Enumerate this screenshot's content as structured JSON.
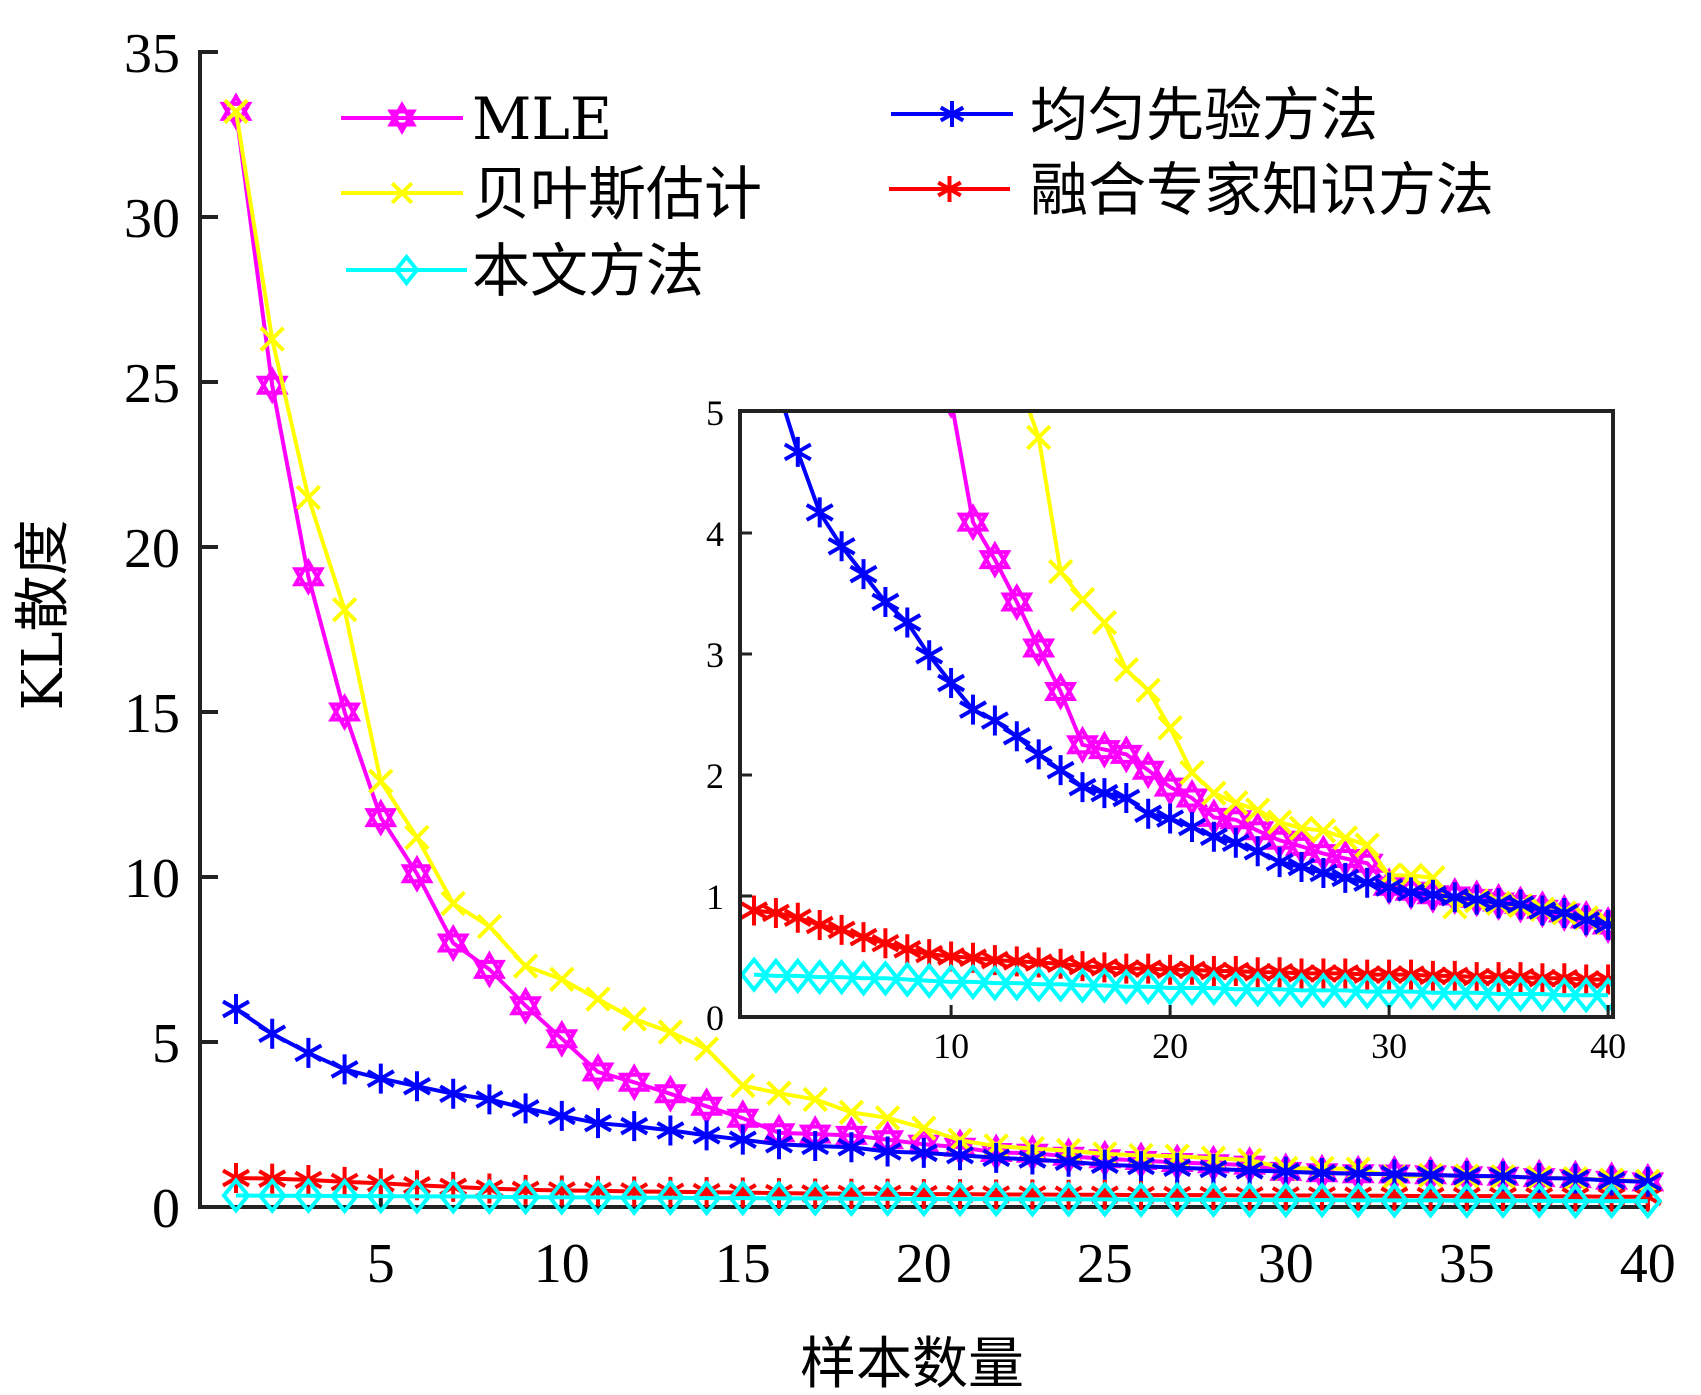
{
  "chart_data": [
    {
      "type": "line",
      "name": "main",
      "title": "",
      "xlabel": "样本数量",
      "ylabel": "KL散度",
      "xlim": [
        0,
        40
      ],
      "ylim": [
        0,
        35
      ],
      "xticks": [
        5,
        10,
        15,
        20,
        25,
        30,
        35,
        40
      ],
      "yticks": [
        0,
        5,
        10,
        15,
        20,
        25,
        30,
        35
      ],
      "grid": false,
      "legend_position": "top",
      "x": [
        1,
        2,
        3,
        4,
        5,
        6,
        7,
        8,
        9,
        10,
        11,
        12,
        13,
        14,
        15,
        16,
        17,
        18,
        19,
        20,
        21,
        22,
        23,
        24,
        25,
        26,
        27,
        28,
        29,
        30,
        31,
        32,
        33,
        34,
        35,
        36,
        37,
        38,
        39,
        40
      ],
      "series": [
        {
          "name": "MLE",
          "color": "#ff00ff",
          "marker": "hexagram",
          "values": [
            33.2,
            24.9,
            19.1,
            15.0,
            11.8,
            10.1,
            8.0,
            7.2,
            6.1,
            5.1,
            4.09,
            3.78,
            3.43,
            3.05,
            2.69,
            2.25,
            2.21,
            2.17,
            2.04,
            1.9,
            1.81,
            1.65,
            1.63,
            1.54,
            1.46,
            1.41,
            1.35,
            1.31,
            1.27,
            1.08,
            1.04,
            1.01,
            1.0,
            0.98,
            0.95,
            0.93,
            0.89,
            0.86,
            0.81,
            0.76
          ]
        },
        {
          "name": "贝叶斯估计",
          "color": "#ffff00",
          "marker": "x",
          "values": [
            33.2,
            26.3,
            21.5,
            18.1,
            12.9,
            11.2,
            9.2,
            8.5,
            7.3,
            6.9,
            6.3,
            5.7,
            5.3,
            4.79,
            3.68,
            3.45,
            3.26,
            2.87,
            2.7,
            2.39,
            2.02,
            1.85,
            1.77,
            1.71,
            1.61,
            1.56,
            1.54,
            1.48,
            1.42,
            1.17,
            1.17,
            1.15,
            0.91,
            0.96,
            0.94,
            0.92,
            0.89,
            0.86,
            0.82,
            0.78
          ]
        },
        {
          "name": "本文方法",
          "color": "#00ffff",
          "marker": "diamond",
          "values": [
            0.35,
            0.34,
            0.34,
            0.33,
            0.33,
            0.32,
            0.32,
            0.31,
            0.3,
            0.29,
            0.29,
            0.28,
            0.28,
            0.27,
            0.27,
            0.26,
            0.26,
            0.25,
            0.25,
            0.24,
            0.24,
            0.24,
            0.23,
            0.23,
            0.23,
            0.22,
            0.22,
            0.22,
            0.21,
            0.21,
            0.21,
            0.2,
            0.2,
            0.2,
            0.19,
            0.19,
            0.19,
            0.18,
            0.18,
            0.18
          ]
        },
        {
          "name": "均匀先验方法",
          "color": "#0000ff",
          "marker": "asterisk",
          "values": [
            6.0,
            5.25,
            4.67,
            4.17,
            3.89,
            3.66,
            3.43,
            3.26,
            2.99,
            2.76,
            2.54,
            2.45,
            2.32,
            2.17,
            2.04,
            1.9,
            1.85,
            1.81,
            1.68,
            1.64,
            1.57,
            1.49,
            1.44,
            1.37,
            1.28,
            1.24,
            1.19,
            1.15,
            1.11,
            1.07,
            1.03,
            1.01,
            0.99,
            0.97,
            0.94,
            0.93,
            0.88,
            0.86,
            0.8,
            0.76
          ]
        },
        {
          "name": "融合专家知识方法",
          "color": "#ff0000",
          "marker": "asterisk",
          "values": [
            0.88,
            0.86,
            0.82,
            0.76,
            0.72,
            0.66,
            0.61,
            0.56,
            0.52,
            0.5,
            0.49,
            0.47,
            0.46,
            0.45,
            0.44,
            0.42,
            0.41,
            0.4,
            0.4,
            0.39,
            0.39,
            0.38,
            0.38,
            0.37,
            0.37,
            0.36,
            0.36,
            0.36,
            0.35,
            0.35,
            0.35,
            0.34,
            0.34,
            0.33,
            0.33,
            0.33,
            0.32,
            0.32,
            0.31,
            0.31
          ]
        }
      ]
    },
    {
      "type": "line",
      "name": "inset",
      "title": "",
      "xlabel": "",
      "ylabel": "",
      "xlim": [
        0.35,
        40
      ],
      "ylim": [
        0,
        5
      ],
      "xticks": [
        10,
        20,
        30,
        40
      ],
      "yticks": [
        0,
        1,
        2,
        3,
        4,
        5
      ],
      "grid": false,
      "note": "zoomed view of the main chart, same series"
    }
  ],
  "legend": {
    "items": [
      {
        "label": "MLE",
        "series": 0
      },
      {
        "label": "贝叶斯估计",
        "series": 1
      },
      {
        "label": "本文方法",
        "series": 2
      },
      {
        "label": "均匀先验方法",
        "series": 3
      },
      {
        "label": "融合专家知识方法",
        "series": 4
      }
    ]
  }
}
